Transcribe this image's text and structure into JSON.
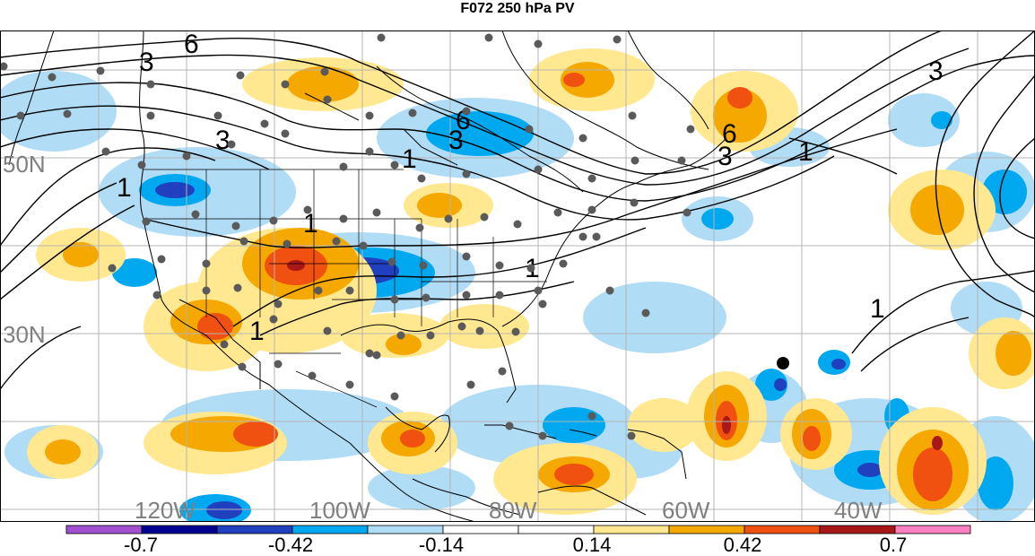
{
  "title": "F072 250 hPa PV",
  "map": {
    "lat_labels": [
      "50N",
      "30N"
    ],
    "lon_labels": [
      "120W",
      "100W",
      "80W",
      "60W",
      "40W"
    ],
    "contour_labels": [
      "6",
      "3",
      "3",
      "6",
      "3",
      "1",
      "6",
      "3",
      "1",
      "3",
      "1",
      "1",
      "1",
      "1",
      "1"
    ],
    "label_color": "#808080",
    "contour_color": "#000000",
    "coastline_color": "#000000",
    "station_color": "#5a5a5a",
    "marker_color": "#000000"
  },
  "colorbar": {
    "labels": [
      "-0.7",
      "-0.42",
      "-0.14",
      "0.14",
      "0.42",
      "0.7"
    ],
    "colors": [
      "#a050d0",
      "#000090",
      "#2040c0",
      "#00a8f0",
      "#b0ddf5",
      "#ffffff",
      "#ffffff",
      "#ffe890",
      "#f5a800",
      "#f05010",
      "#a81818",
      "#ff80c0"
    ]
  }
}
